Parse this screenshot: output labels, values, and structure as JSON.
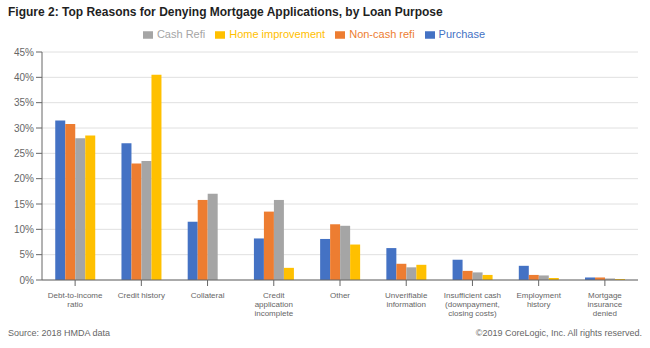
{
  "chart_data": {
    "type": "bar",
    "title": "Figure 2:  Top Reasons for Denying Mortgage Applications, by Loan Purpose",
    "categories": [
      "Debt-to-income\nratio",
      "Credit history",
      "Collateral",
      "Credit\napplication\nincomplete",
      "Other",
      "Unverifiable\ninformation",
      "Insufficient cash\n(downpayment,\nclosing costs)",
      "Employment\nhistory",
      "Mortgage\ninsurance\ndenied"
    ],
    "series": [
      {
        "name": "Purchase",
        "color": "#4472c4",
        "values": [
          31.5,
          27.0,
          11.5,
          8.2,
          8.1,
          6.3,
          4.0,
          2.8,
          0.5
        ]
      },
      {
        "name": "Non-cash refi",
        "color": "#ed7d31",
        "values": [
          30.8,
          23.0,
          15.8,
          13.5,
          11.0,
          3.2,
          1.8,
          1.0,
          0.5
        ]
      },
      {
        "name": "Cash Refi",
        "color": "#a5a5a5",
        "values": [
          28.0,
          23.5,
          17.0,
          15.8,
          10.7,
          2.5,
          1.5,
          0.9,
          0.3
        ]
      },
      {
        "name": "Home improvement",
        "color": "#ffc000",
        "values": [
          28.5,
          40.5,
          0.0,
          2.4,
          7.0,
          3.0,
          1.0,
          0.4,
          0.2
        ]
      }
    ],
    "ylim": [
      0,
      45
    ],
    "yticks": [
      {
        "value": 0,
        "label": "0%"
      },
      {
        "value": 5,
        "label": "5%"
      },
      {
        "value": 10,
        "label": "10%"
      },
      {
        "value": 15,
        "label": "15%"
      },
      {
        "value": 20,
        "label": "20%"
      },
      {
        "value": 25,
        "label": "25%"
      },
      {
        "value": 30,
        "label": "30%"
      },
      {
        "value": 35,
        "label": "35%"
      },
      {
        "value": 40,
        "label": "40%"
      },
      {
        "value": 45,
        "label": "45%"
      }
    ],
    "grid": true,
    "legend": "top",
    "annotations": [
      "Source: 2018 HMDA data",
      "©2019 CoreLogic, Inc. All rights reserved."
    ]
  }
}
